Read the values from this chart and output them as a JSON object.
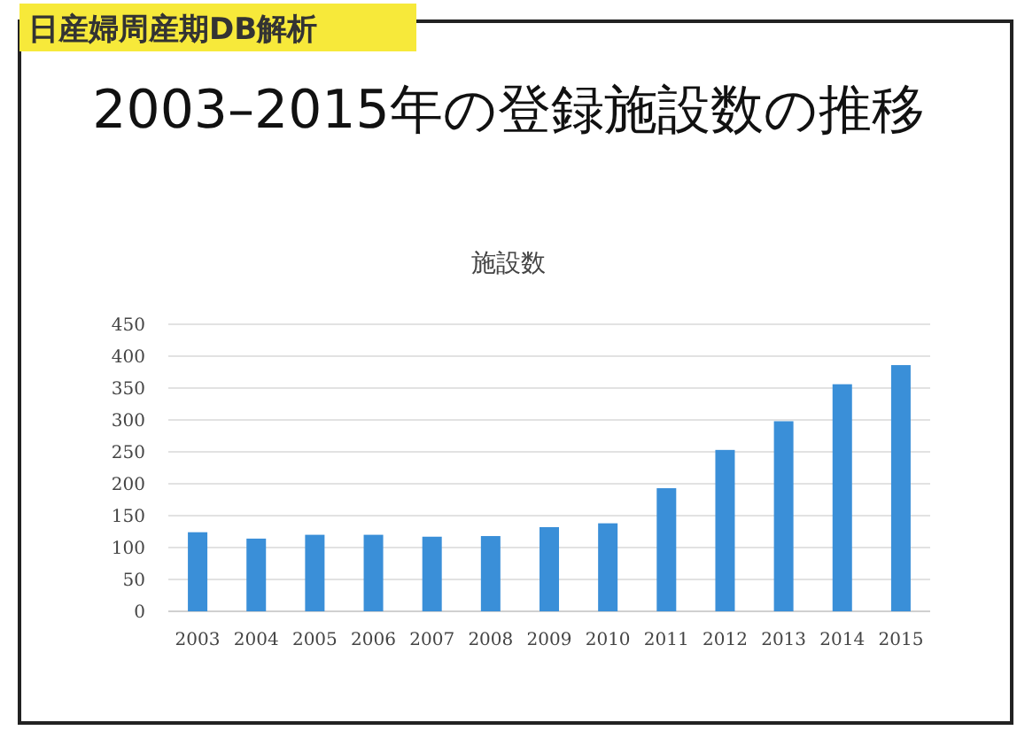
{
  "chart_data": {
    "type": "bar",
    "title": "2003–2015年の登録施設数の推移",
    "subtitle": "施設数",
    "annotations": [
      "日産婦周産期DB解析"
    ],
    "categories": [
      "2003",
      "2004",
      "2005",
      "2006",
      "2007",
      "2008",
      "2009",
      "2010",
      "2011",
      "2012",
      "2013",
      "2014",
      "2015"
    ],
    "values": [
      124,
      114,
      120,
      120,
      117,
      118,
      132,
      138,
      193,
      253,
      298,
      356,
      386
    ],
    "color": "#3a8fd8",
    "ylim": [
      0,
      450
    ],
    "yticks": [
      0,
      50,
      100,
      150,
      200,
      250,
      300,
      350,
      400,
      450
    ],
    "grid": "y"
  }
}
